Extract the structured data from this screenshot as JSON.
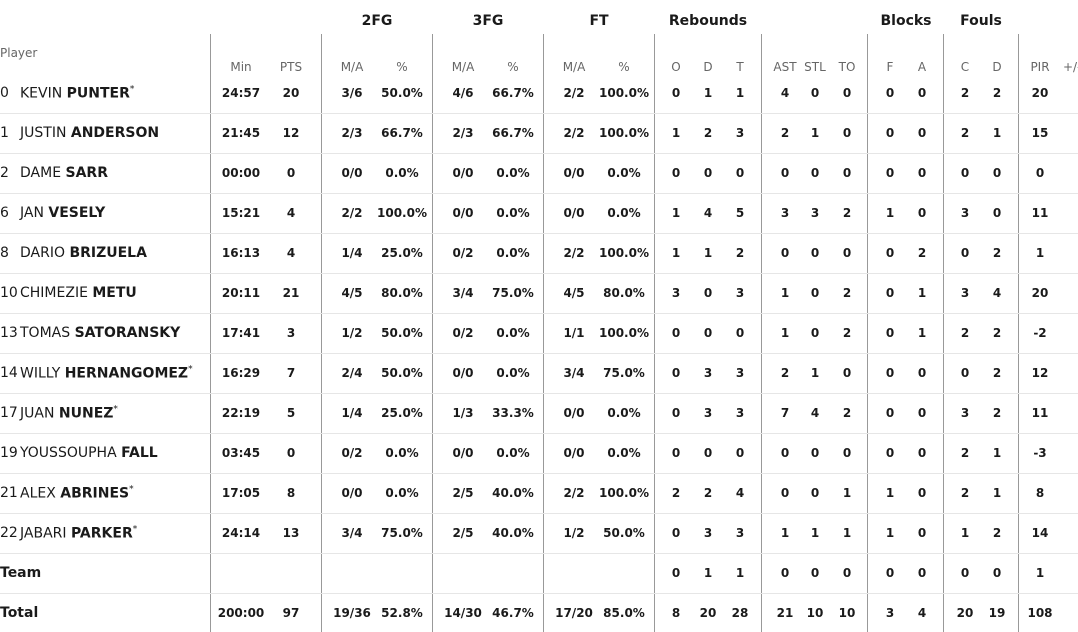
{
  "table": {
    "player_header": "Player",
    "groups": [
      {
        "label": "2FG",
        "col": 2,
        "span": 2
      },
      {
        "label": "3FG",
        "col": 4,
        "span": 2
      },
      {
        "label": "FT",
        "col": 6,
        "span": 2
      },
      {
        "label": "Rebounds",
        "col": 8,
        "span": 3
      },
      {
        "label": "Blocks",
        "col": 14,
        "span": 2
      },
      {
        "label": "Fouls",
        "col": 16,
        "span": 2
      }
    ],
    "columns": [
      "Min",
      "PTS",
      "M/A",
      "%",
      "M/A",
      "%",
      "M/A",
      "%",
      "O",
      "D",
      "T",
      "AST",
      "STL",
      "TO",
      "F",
      "A",
      "C",
      "D",
      "PIR"
    ],
    "extra_column": "+/-",
    "rows": [
      {
        "number": "0",
        "first": "KEVIN",
        "last": "PUNTER",
        "marker": "*",
        "stats": [
          "24:57",
          "20",
          "3/6",
          "50.0%",
          "4/6",
          "66.7%",
          "2/2",
          "100.0%",
          "0",
          "1",
          "1",
          "4",
          "0",
          "0",
          "0",
          "0",
          "2",
          "2",
          "20"
        ]
      },
      {
        "number": "1",
        "first": "JUSTIN",
        "last": "ANDERSON",
        "stats": [
          "21:45",
          "12",
          "2/3",
          "66.7%",
          "2/3",
          "66.7%",
          "2/2",
          "100.0%",
          "1",
          "2",
          "3",
          "2",
          "1",
          "0",
          "0",
          "0",
          "2",
          "1",
          "15"
        ]
      },
      {
        "number": "2",
        "first": "DAME",
        "last": "SARR",
        "stats": [
          "00:00",
          "0",
          "0/0",
          "0.0%",
          "0/0",
          "0.0%",
          "0/0",
          "0.0%",
          "0",
          "0",
          "0",
          "0",
          "0",
          "0",
          "0",
          "0",
          "0",
          "0",
          "0"
        ]
      },
      {
        "number": "6",
        "first": "JAN",
        "last": "VESELY",
        "stats": [
          "15:21",
          "4",
          "2/2",
          "100.0%",
          "0/0",
          "0.0%",
          "0/0",
          "0.0%",
          "1",
          "4",
          "5",
          "3",
          "3",
          "2",
          "1",
          "0",
          "3",
          "0",
          "11"
        ]
      },
      {
        "number": "8",
        "first": "DARIO",
        "last": "BRIZUELA",
        "stats": [
          "16:13",
          "4",
          "1/4",
          "25.0%",
          "0/2",
          "0.0%",
          "2/2",
          "100.0%",
          "1",
          "1",
          "2",
          "0",
          "0",
          "0",
          "0",
          "2",
          "0",
          "2",
          "1"
        ]
      },
      {
        "number": "10",
        "first": "CHIMEZIE",
        "last": "METU",
        "stats": [
          "20:11",
          "21",
          "4/5",
          "80.0%",
          "3/4",
          "75.0%",
          "4/5",
          "80.0%",
          "3",
          "0",
          "3",
          "1",
          "0",
          "2",
          "0",
          "1",
          "3",
          "4",
          "20"
        ]
      },
      {
        "number": "13",
        "first": "TOMAS",
        "last": "SATORANSKY",
        "stats": [
          "17:41",
          "3",
          "1/2",
          "50.0%",
          "0/2",
          "0.0%",
          "1/1",
          "100.0%",
          "0",
          "0",
          "0",
          "1",
          "0",
          "2",
          "0",
          "1",
          "2",
          "2",
          "-2"
        ]
      },
      {
        "number": "14",
        "first": "WILLY",
        "last": "HERNANGOMEZ",
        "marker": "*",
        "stats": [
          "16:29",
          "7",
          "2/4",
          "50.0%",
          "0/0",
          "0.0%",
          "3/4",
          "75.0%",
          "0",
          "3",
          "3",
          "2",
          "1",
          "0",
          "0",
          "0",
          "0",
          "2",
          "12"
        ]
      },
      {
        "number": "17",
        "first": "JUAN",
        "last": "NUNEZ",
        "marker": "*",
        "stats": [
          "22:19",
          "5",
          "1/4",
          "25.0%",
          "1/3",
          "33.3%",
          "0/0",
          "0.0%",
          "0",
          "3",
          "3",
          "7",
          "4",
          "2",
          "0",
          "0",
          "3",
          "2",
          "11"
        ]
      },
      {
        "number": "19",
        "first": "YOUSSOUPHA",
        "last": "FALL",
        "stats": [
          "03:45",
          "0",
          "0/2",
          "0.0%",
          "0/0",
          "0.0%",
          "0/0",
          "0.0%",
          "0",
          "0",
          "0",
          "0",
          "0",
          "0",
          "0",
          "0",
          "2",
          "1",
          "-3"
        ]
      },
      {
        "number": "21",
        "first": "ALEX",
        "last": "ABRINES",
        "marker": "*",
        "stats": [
          "17:05",
          "8",
          "0/0",
          "0.0%",
          "2/5",
          "40.0%",
          "2/2",
          "100.0%",
          "2",
          "2",
          "4",
          "0",
          "0",
          "1",
          "1",
          "0",
          "2",
          "1",
          "8"
        ]
      },
      {
        "number": "22",
        "first": "JABARI",
        "last": "PARKER",
        "marker": "*",
        "stats": [
          "24:14",
          "13",
          "3/4",
          "75.0%",
          "2/5",
          "40.0%",
          "1/2",
          "50.0%",
          "0",
          "3",
          "3",
          "1",
          "1",
          "1",
          "1",
          "0",
          "1",
          "2",
          "14"
        ]
      },
      {
        "label": "Team",
        "stats": [
          null,
          null,
          null,
          null,
          null,
          null,
          null,
          null,
          "0",
          "1",
          "1",
          "0",
          "0",
          "0",
          "0",
          "0",
          "0",
          "0",
          "1"
        ]
      },
      {
        "label": "Total",
        "stats": [
          "200:00",
          "97",
          "19/36",
          "52.8%",
          "14/30",
          "46.7%",
          "17/20",
          "85.0%",
          "8",
          "20",
          "28",
          "21",
          "10",
          "10",
          "3",
          "4",
          "20",
          "19",
          "108"
        ]
      }
    ]
  }
}
